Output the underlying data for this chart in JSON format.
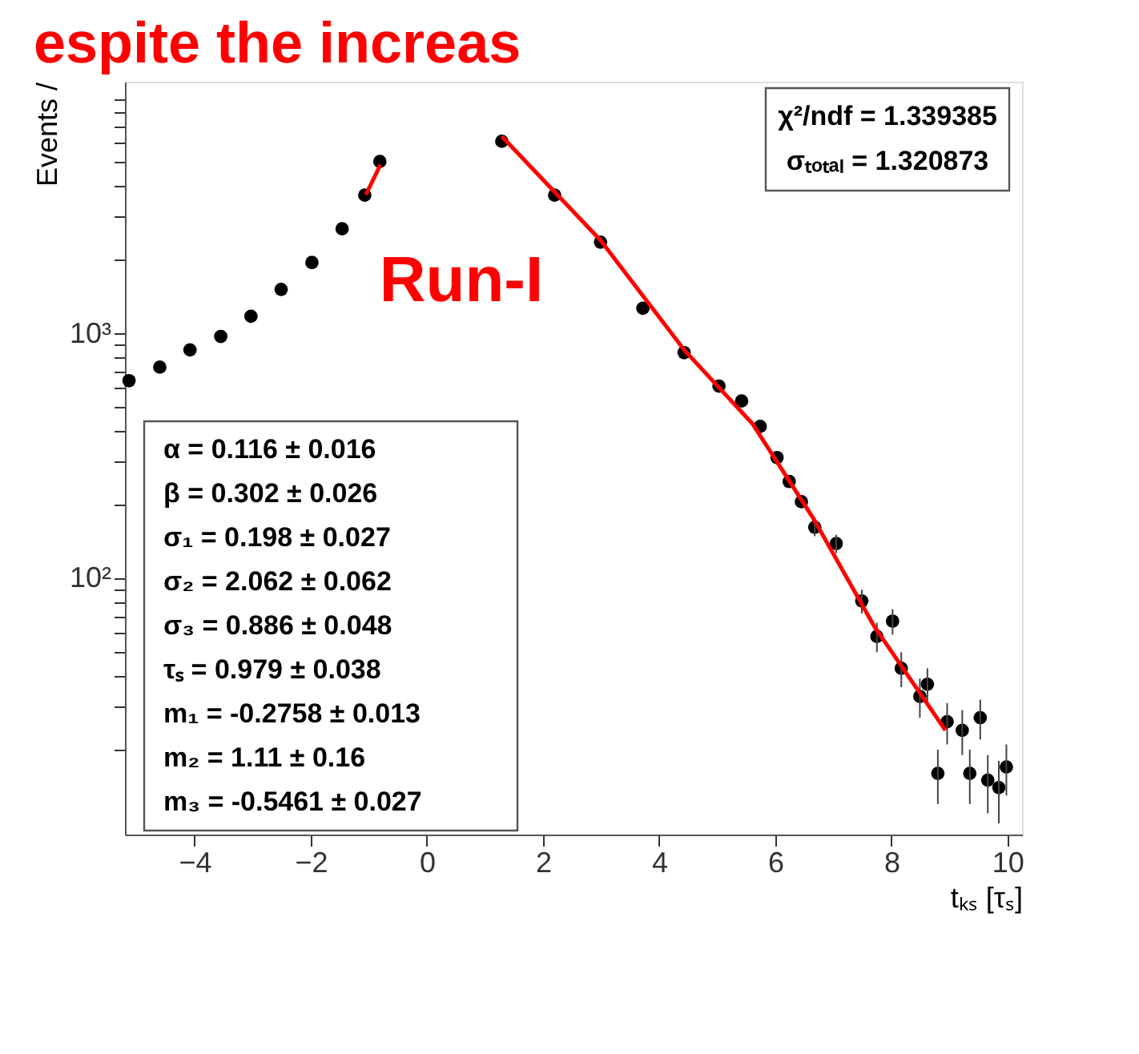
{
  "chart_data": {
    "type": "scatter",
    "title": "espite the increas",
    "xlabel": "tₖₛ [τₛ]",
    "ylabel": "Events /",
    "log": "y",
    "xlim": [
      -5.2,
      10.25
    ],
    "ylim": [
      9,
      10700
    ],
    "xticks": [
      -4,
      -2,
      0,
      2,
      4,
      6,
      8,
      10
    ],
    "yticks": [
      {
        "value": 20,
        "label": null
      },
      {
        "value": 30,
        "label": null
      },
      {
        "value": 40,
        "label": null
      },
      {
        "value": 50,
        "label": null
      },
      {
        "value": 60,
        "label": null
      },
      {
        "value": 70,
        "label": null
      },
      {
        "value": 80,
        "label": null
      },
      {
        "value": 90,
        "label": null
      },
      {
        "value": 100,
        "label": "10²"
      },
      {
        "value": 200,
        "label": null
      },
      {
        "value": 300,
        "label": null
      },
      {
        "value": 400,
        "label": null
      },
      {
        "value": 500,
        "label": null
      },
      {
        "value": 600,
        "label": null
      },
      {
        "value": 700,
        "label": null
      },
      {
        "value": 800,
        "label": null
      },
      {
        "value": 900,
        "label": null
      },
      {
        "value": 1000,
        "label": "10³"
      },
      {
        "value": 2000,
        "label": null
      },
      {
        "value": 3000,
        "label": null
      },
      {
        "value": 4000,
        "label": null
      },
      {
        "value": 5000,
        "label": null
      },
      {
        "value": 6000,
        "label": null
      },
      {
        "value": 7000,
        "label": null
      },
      {
        "value": 8000,
        "label": null
      },
      {
        "value": 9000,
        "label": null
      }
    ],
    "grid": false,
    "marker": "circle",
    "series": [
      {
        "color": "#000000",
        "x": [
          -5.13,
          -4.6,
          -4.08,
          -3.55,
          -3.03,
          -2.51,
          -1.98,
          -1.46,
          -1.07,
          -0.81,
          1.29,
          2.2,
          2.99,
          3.72,
          4.43,
          5.03,
          5.42,
          5.74,
          6.03,
          6.24,
          6.45,
          6.68,
          7.05,
          7.49,
          7.75,
          8.02,
          8.17,
          8.49,
          8.62,
          8.8,
          8.96,
          9.22,
          9.35,
          9.53,
          9.66,
          9.85,
          9.98
        ],
        "values": [
          643,
          730,
          859,
          975,
          1178,
          1517,
          1954,
          2683,
          3684,
          5050,
          6110,
          3680,
          2366,
          1270,
          837,
          611,
          531,
          418,
          312,
          249,
          206,
          162,
          139,
          81,
          58,
          67,
          43,
          33,
          37,
          16,
          26,
          24,
          16,
          27,
          15,
          14,
          17
        ],
        "errors": [
          null,
          null,
          null,
          null,
          null,
          null,
          null,
          null,
          null,
          null,
          null,
          null,
          null,
          null,
          null,
          null,
          null,
          null,
          null,
          null,
          null,
          13,
          12,
          9,
          8,
          8,
          7,
          6,
          6,
          4,
          5,
          5,
          4,
          5,
          4,
          4,
          4
        ]
      },
      {
        "type": "line",
        "marker": "none",
        "color": "#ff0000",
        "x": [
          -1.05,
          -0.8,
          0.2,
          1.29,
          2.99,
          4.43,
          5.61,
          6.65,
          7.7,
          8.93
        ],
        "values": [
          3700,
          4900,
          null,
          6400,
          2409,
          859,
          428,
          177,
          64,
          24
        ]
      }
    ],
    "annotations": [
      "α =  0.116 ± 0.016",
      "β =  0.302 ± 0.026",
      "σ₁ =  0.198 ± 0.027",
      "σ₂ =  2.062 ± 0.062",
      "σ₃ =  0.886 ± 0.048",
      "τₛ =  0.979 ± 0.038",
      "m₁ = -0.2758 ± 0.013",
      "m₂ =  1.11 ± 0.16",
      "m₃ = -0.5461 ± 0.027",
      "χ²/ndf = 1.339385",
      "σₜₒₜₐₗ = 1.320873",
      "Run-I"
    ]
  }
}
